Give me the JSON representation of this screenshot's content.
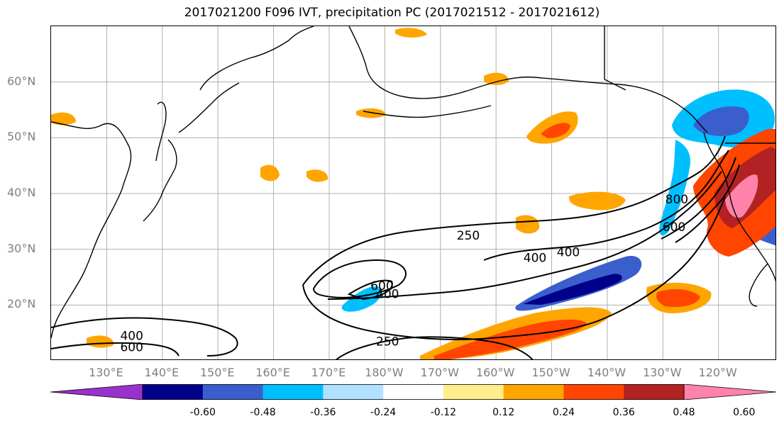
{
  "title": "2017021200 F096 IVT, precipitation PC (2017021512 - 2017021612)",
  "lat_labels": [
    "60°N",
    "50°N",
    "40°N",
    "30°N",
    "20°N"
  ],
  "lat_values": [
    60,
    50,
    40,
    30,
    20
  ],
  "lon_labels": [
    "130°E",
    "140°E",
    "150°E",
    "160°E",
    "170°E",
    "180°W",
    "170°W",
    "160°W",
    "150°W",
    "140°W",
    "130°W",
    "120°W"
  ],
  "lon_values": [
    130,
    140,
    150,
    160,
    170,
    180,
    190,
    200,
    210,
    220,
    230,
    240
  ],
  "extent": {
    "lon_min": 120,
    "lon_max": 250.5,
    "lat_min": 10,
    "lat_max": 70
  },
  "contour_labels": [
    {
      "text": "250",
      "lon": 195,
      "lat": 32.5
    },
    {
      "text": "250",
      "lon": 180.5,
      "lat": 13.5
    },
    {
      "text": "400",
      "lon": 207,
      "lat": 28.5
    },
    {
      "text": "400",
      "lon": 213,
      "lat": 29.5
    },
    {
      "text": "400",
      "lon": 180.5,
      "lat": 22
    },
    {
      "text": "400",
      "lon": 134.5,
      "lat": 14.5
    },
    {
      "text": "600",
      "lon": 179.5,
      "lat": 23.5
    },
    {
      "text": "600",
      "lon": 134.5,
      "lat": 12.5
    },
    {
      "text": "600",
      "lon": 232,
      "lat": 34
    },
    {
      "text": "800",
      "lon": 232.5,
      "lat": 39
    }
  ],
  "colorbar": {
    "colors": [
      "#9932cc",
      "#00008b",
      "#3a5fcd",
      "#00bfff",
      "#b0e2ff",
      "#ffffff",
      "#ffec8b",
      "#ffa500",
      "#ff4500",
      "#b22222",
      "#ff82ab"
    ],
    "tick_labels": [
      "-0.60",
      "-0.48",
      "-0.36",
      "-0.24",
      "-0.12",
      "0.12",
      "0.24",
      "0.36",
      "0.48",
      "0.60"
    ]
  },
  "colors": {
    "grid": "#b0b0b0",
    "coast": "#000000",
    "axis_label": "#7f7f7f"
  }
}
